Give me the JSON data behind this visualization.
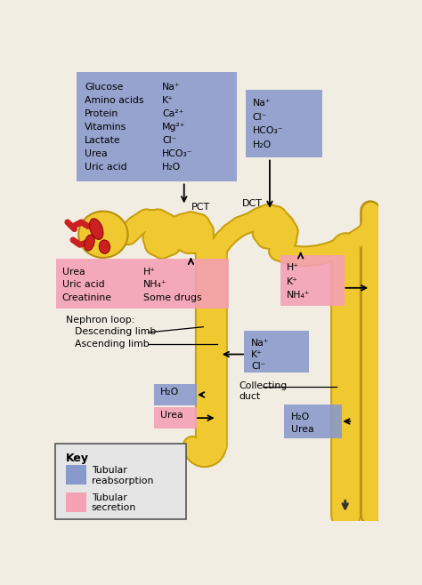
{
  "bg_color": "#f2ede2",
  "tubule_color": "#f0c830",
  "tubule_edge": "#c8a010",
  "reab_color": "#8899cc",
  "secr_color": "#f4a0b5",
  "text_color": "#111111",
  "pct_box_left": [
    "Glucose",
    "Amino acids",
    "Protein",
    "Vitamins",
    "Lactate",
    "Urea",
    "Uric acid"
  ],
  "pct_box_right": [
    "Na⁺",
    "K⁺",
    "Ca²⁺",
    "Mg²⁺",
    "Cl⁻",
    "HCO₃⁻",
    "H₂O"
  ],
  "dct_box": [
    "Na⁺",
    "Cl⁻",
    "HCO₃⁻",
    "H₂O"
  ],
  "pct_sec_left": [
    "Urea",
    "Uric acid",
    "Creatinine"
  ],
  "pct_sec_right": [
    "H⁺",
    "NH₄⁺",
    "Some drugs"
  ],
  "dct_sec": [
    "H⁺",
    "K⁺",
    "NH₄⁺"
  ],
  "loop_reab": [
    "Na⁺",
    "K⁺",
    "Cl⁻"
  ],
  "h2o_label": "H₂O",
  "urea_label": "Urea",
  "cd_box": [
    "H₂O",
    "Urea"
  ],
  "nephron_loop": "Nephron loop:",
  "desc_limb": "Descending limb",
  "asc_limb": "Ascending limb",
  "coll_duct": "Collecting\nduct",
  "pct_label": "PCT",
  "dct_label": "DCT",
  "key_title": "Key",
  "key_reab": "Tubular\nreabsorption",
  "key_secr": "Tubular\nsecretion"
}
